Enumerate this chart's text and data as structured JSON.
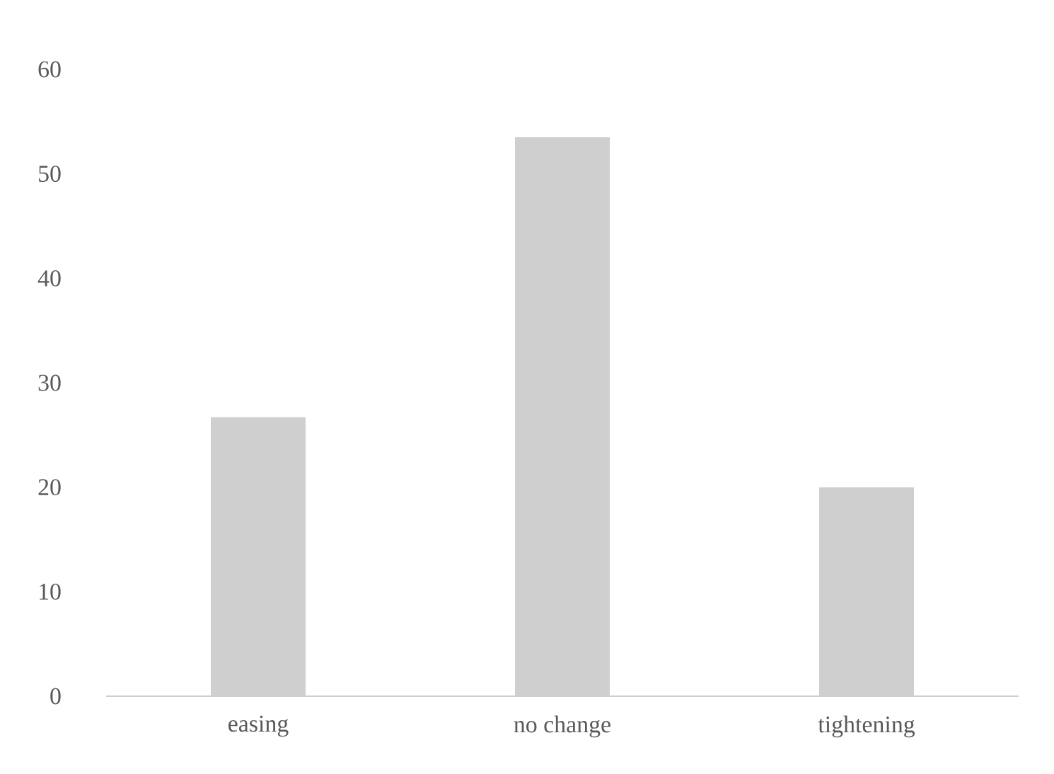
{
  "chart_data": {
    "type": "bar",
    "categories": [
      "easing",
      "no change",
      "tightening"
    ],
    "values": [
      26.7,
      53.5,
      20.0
    ],
    "color": "#d0cfcf",
    "ylim": [
      0,
      60
    ],
    "yticks": [
      0,
      10,
      20,
      30,
      40,
      50,
      60
    ]
  }
}
